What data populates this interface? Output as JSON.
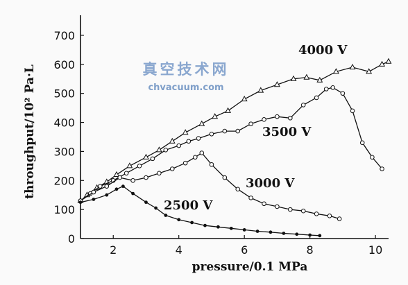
{
  "watermark": {
    "text_cn": "真空技术网",
    "url": "chvacuum.com"
  },
  "chart_data": {
    "type": "line",
    "title": "",
    "xlabel": "pressure/0.1 MPa",
    "ylabel": "throughput/10² Pa·L",
    "xlim": [
      1,
      10.4
    ],
    "ylim": [
      0,
      750
    ],
    "x_ticks": [
      2,
      4,
      6,
      8,
      10
    ],
    "x_tick_labels": [
      "2",
      "4",
      "6",
      "8",
      "10"
    ],
    "y_ticks": [
      0,
      100,
      200,
      300,
      400,
      500,
      600,
      700
    ],
    "y_tick_labels": [
      "0",
      "100",
      "200",
      "300",
      "400",
      "500",
      "600",
      "700"
    ],
    "grid": false,
    "series": [
      {
        "name": "4000 V",
        "marker": "triangle",
        "x": [
          1.0,
          1.2,
          1.5,
          1.8,
          2.1,
          2.5,
          3.0,
          3.4,
          3.8,
          4.2,
          4.7,
          5.1,
          5.5,
          6.0,
          6.5,
          7.0,
          7.5,
          7.9,
          8.3,
          8.8,
          9.3,
          9.8,
          10.2,
          10.4
        ],
        "y": [
          130,
          150,
          175,
          195,
          220,
          250,
          280,
          305,
          335,
          365,
          395,
          420,
          440,
          480,
          510,
          530,
          550,
          555,
          545,
          575,
          590,
          575,
          600,
          610
        ]
      },
      {
        "name": "3500 V",
        "marker": "circle",
        "x": [
          1.0,
          1.3,
          1.6,
          2.0,
          2.4,
          2.8,
          3.2,
          3.6,
          4.0,
          4.3,
          4.6,
          5.0,
          5.4,
          5.8,
          6.2,
          6.6,
          7.0,
          7.4,
          7.8,
          8.2,
          8.5,
          8.7,
          9.0,
          9.3,
          9.6,
          9.9,
          10.2
        ],
        "y": [
          130,
          155,
          180,
          200,
          225,
          250,
          275,
          305,
          320,
          335,
          345,
          360,
          370,
          370,
          395,
          410,
          420,
          415,
          460,
          485,
          515,
          520,
          500,
          440,
          330,
          280,
          240
        ]
      },
      {
        "name": "3000 V",
        "marker": "circle",
        "x": [
          1.0,
          1.4,
          1.8,
          2.2,
          2.6,
          3.0,
          3.4,
          3.8,
          4.2,
          4.5,
          4.7,
          5.0,
          5.4,
          5.8,
          6.2,
          6.6,
          7.0,
          7.4,
          7.8,
          8.2,
          8.6,
          8.9
        ],
        "y": [
          130,
          160,
          180,
          210,
          200,
          210,
          225,
          240,
          260,
          280,
          295,
          255,
          210,
          170,
          140,
          120,
          110,
          100,
          95,
          85,
          78,
          68
        ]
      },
      {
        "name": "2500 V",
        "marker": "dot",
        "x": [
          1.0,
          1.4,
          1.8,
          2.1,
          2.3,
          2.6,
          3.0,
          3.3,
          3.6,
          4.0,
          4.4,
          4.8,
          5.2,
          5.6,
          6.0,
          6.4,
          6.8,
          7.2,
          7.6,
          8.0,
          8.3
        ],
        "y": [
          125,
          135,
          150,
          170,
          180,
          155,
          125,
          105,
          80,
          65,
          55,
          45,
          40,
          35,
          30,
          25,
          22,
          18,
          15,
          12,
          10
        ]
      }
    ],
    "annotations": [
      "4000 V",
      "3500 V",
      "3000 V",
      "2500 V"
    ]
  }
}
